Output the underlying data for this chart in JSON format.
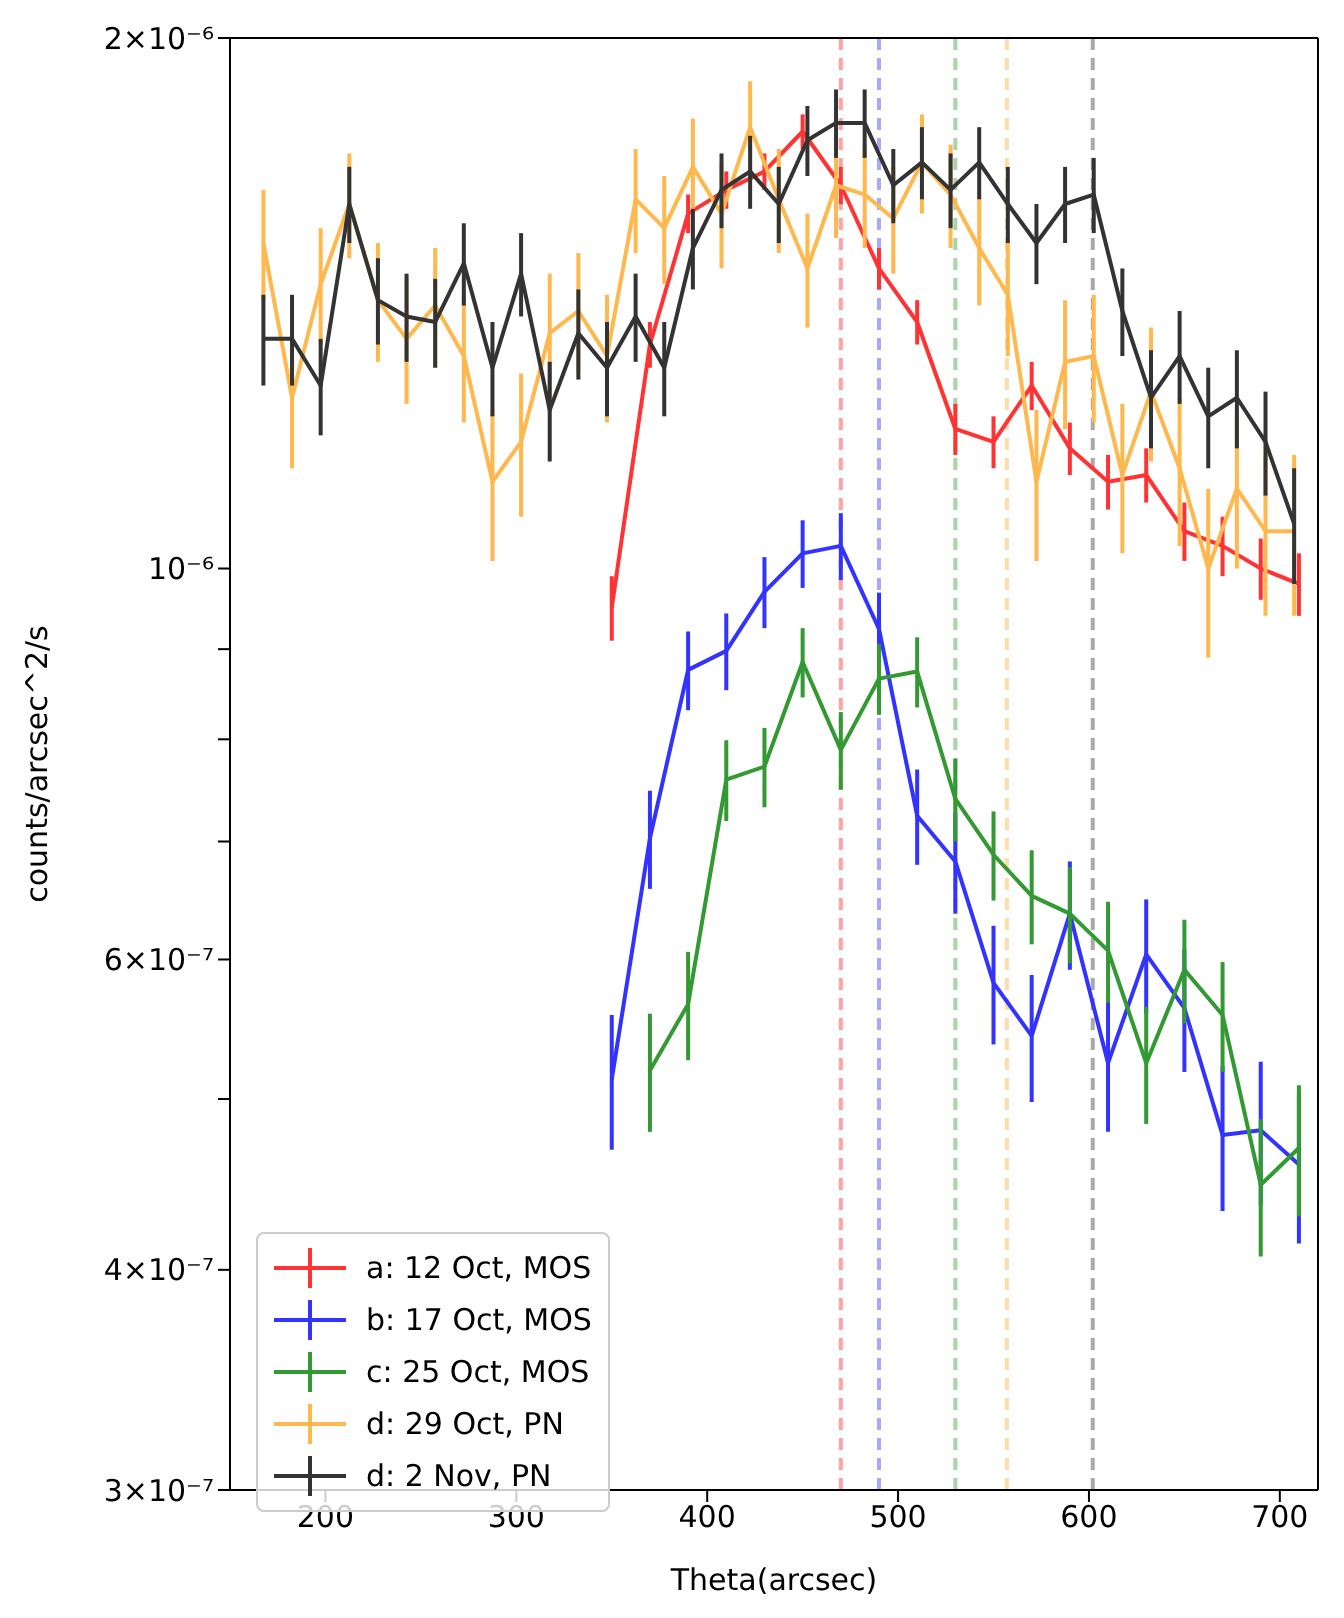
{
  "chart_data": {
    "type": "line",
    "xlabel": "Theta(arcsec)",
    "ylabel": "counts/arcsec^2/s",
    "log": "y",
    "xlim": [
      150,
      720
    ],
    "xticks": [
      200,
      300,
      400,
      500,
      600,
      700
    ],
    "ylim": [
      3e-07,
      2e-06
    ],
    "yticks": [
      {
        "value": 3e-07,
        "label": "3×10⁻⁷"
      },
      {
        "value": 4e-07,
        "label": "4×10⁻⁷"
      },
      {
        "value": 5e-07,
        "label": null
      },
      {
        "value": 6e-07,
        "label": "6×10⁻⁷"
      },
      {
        "value": 7e-07,
        "label": null
      },
      {
        "value": 8e-07,
        "label": null
      },
      {
        "value": 9e-07,
        "label": null
      },
      {
        "value": 1e-06,
        "label": "10⁻⁶"
      },
      {
        "value": 2e-06,
        "label": "2×10⁻⁶"
      }
    ],
    "legend": "bottom left",
    "marker": "none",
    "line_style": "solid",
    "ref_lines": [
      {
        "axis": "x",
        "value": 470,
        "color": "#ffa3a3",
        "line_style": "dashed"
      },
      {
        "axis": "x",
        "value": 490,
        "color": "#a8a8ff",
        "line_style": "dashed"
      },
      {
        "axis": "x",
        "value": 530,
        "color": "#a9d3a9",
        "line_style": "dashed"
      },
      {
        "axis": "x",
        "value": 557,
        "color": "#ffdca8",
        "line_style": "dashed"
      },
      {
        "axis": "x",
        "value": 602,
        "color": "#a9a9a9",
        "line_style": "dashed"
      }
    ],
    "series": [
      {
        "name": "a: 12 Oct, MOS",
        "color": "#ff3333",
        "x": [
          350,
          370,
          390,
          410,
          430,
          450,
          470,
          490,
          510,
          530,
          550,
          570,
          590,
          610,
          630,
          650,
          670,
          690,
          710
        ],
        "values": [
          9.5e-07,
          1.34e-06,
          1.59e-06,
          1.64e-06,
          1.68e-06,
          1.77e-06,
          1.65e-06,
          1.48e-06,
          1.38e-06,
          1.2e-06,
          1.18e-06,
          1.27e-06,
          1.17e-06,
          1.12e-06,
          1.13e-06,
          1.05e-06,
          1.03e-06,
          1e-06,
          9.8e-07
        ],
        "errors": [
          4e-08,
          4e-08,
          4e-08,
          4e-08,
          4e-08,
          4e-08,
          4e-08,
          4e-08,
          4e-08,
          4e-08,
          4e-08,
          4e-08,
          4e-08,
          4e-08,
          4e-08,
          4e-08,
          4e-08,
          4e-08,
          4e-08
        ]
      },
      {
        "name": "b: 17 Oct, MOS",
        "color": "#3333ff",
        "x": [
          350,
          370,
          390,
          410,
          430,
          450,
          470,
          490,
          510,
          530,
          550,
          570,
          590,
          610,
          630,
          650,
          670,
          690,
          710
        ],
        "values": [
          5.13e-07,
          7.03e-07,
          8.76e-07,
          8.98e-07,
          9.7e-07,
          1.02e-06,
          1.03e-06,
          9.24e-07,
          7.24e-07,
          6.82e-07,
          5.82e-07,
          5.43e-07,
          6.37e-07,
          5.24e-07,
          6.04e-07,
          5.63e-07,
          4.77e-07,
          4.8e-07,
          4.59e-07
        ],
        "errors": [
          4.5e-08,
          4.5e-08,
          4.5e-08,
          4.5e-08,
          4.5e-08,
          4.5e-08,
          4.5e-08,
          4.5e-08,
          4.5e-08,
          4.5e-08,
          4.5e-08,
          4.5e-08,
          4.5e-08,
          4.5e-08,
          4.5e-08,
          4.5e-08,
          4.5e-08,
          4.5e-08,
          4.5e-08
        ]
      },
      {
        "name": "c: 25 Oct, MOS",
        "color": "#339933",
        "x": [
          370,
          390,
          410,
          430,
          450,
          470,
          490,
          510,
          530,
          550,
          570,
          590,
          610,
          630,
          650,
          670,
          690,
          710
        ],
        "values": [
          5.19e-07,
          5.66e-07,
          7.59e-07,
          7.72e-07,
          8.85e-07,
          7.89e-07,
          8.66e-07,
          8.74e-07,
          7.4e-07,
          6.88e-07,
          6.52e-07,
          6.37e-07,
          6.07e-07,
          5.24e-07,
          5.92e-07,
          5.58e-07,
          4.47e-07,
          4.69e-07
        ],
        "errors": [
          4e-08,
          4e-08,
          4e-08,
          4e-08,
          4e-08,
          4e-08,
          4e-08,
          4e-08,
          4e-08,
          4e-08,
          4e-08,
          4e-08,
          4e-08,
          4e-08,
          4e-08,
          4e-08,
          4e-08,
          4e-08
        ]
      },
      {
        "name": "d: 29 Oct, PN",
        "color": "#ffb84d",
        "x": [
          167.5,
          182.5,
          197.5,
          212.5,
          227.5,
          242.5,
          257.5,
          272.5,
          287.5,
          302.5,
          317.5,
          332.5,
          347.5,
          362.5,
          377.5,
          392.5,
          407.5,
          422.5,
          437.5,
          452.5,
          467.5,
          482.5,
          497.5,
          512.5,
          527.5,
          542.5,
          557.5,
          572.5,
          587.5,
          602.5,
          617.5,
          632.5,
          647.5,
          662.5,
          677.5,
          692.5,
          707.5
        ],
        "values": [
          1.53e-06,
          1.25e-06,
          1.45e-06,
          1.61e-06,
          1.42e-06,
          1.35e-06,
          1.41e-06,
          1.32e-06,
          1.12e-06,
          1.18e-06,
          1.36e-06,
          1.4e-06,
          1.32e-06,
          1.62e-06,
          1.56e-06,
          1.69e-06,
          1.59e-06,
          1.78e-06,
          1.62e-06,
          1.48e-06,
          1.65e-06,
          1.63e-06,
          1.58e-06,
          1.7e-06,
          1.63e-06,
          1.52e-06,
          1.43e-06,
          1.12e-06,
          1.31e-06,
          1.32e-06,
          1.13e-06,
          1.26e-06,
          1.14e-06,
          1e-06,
          1.11e-06,
          1.05e-06,
          1.05e-06
        ],
        "errors": [
          1.1e-07,
          1.1e-07,
          1.1e-07,
          1.1e-07,
          1.1e-07,
          1.1e-07,
          1.1e-07,
          1.1e-07,
          1.1e-07,
          1.1e-07,
          1.1e-07,
          1.1e-07,
          1.1e-07,
          1.1e-07,
          1.1e-07,
          1.1e-07,
          1.1e-07,
          1.1e-07,
          1.1e-07,
          1.1e-07,
          1.1e-07,
          1.1e-07,
          1.1e-07,
          1.1e-07,
          1.1e-07,
          1.1e-07,
          1.1e-07,
          1.1e-07,
          1.1e-07,
          1.1e-07,
          1.1e-07,
          1.1e-07,
          1.1e-07,
          1.1e-07,
          1.1e-07,
          1.1e-07,
          1.1e-07
        ]
      },
      {
        "name": "d: 2 Nov, PN",
        "color": "#333333",
        "x": [
          167.5,
          182.5,
          197.5,
          212.5,
          227.5,
          242.5,
          257.5,
          272.5,
          287.5,
          302.5,
          317.5,
          332.5,
          347.5,
          362.5,
          377.5,
          392.5,
          407.5,
          422.5,
          437.5,
          452.5,
          467.5,
          482.5,
          497.5,
          512.5,
          527.5,
          542.5,
          557.5,
          572.5,
          587.5,
          602.5,
          617.5,
          632.5,
          647.5,
          662.5,
          677.5,
          692.5,
          707.5
        ],
        "values": [
          1.35e-06,
          1.35e-06,
          1.27e-06,
          1.61e-06,
          1.42e-06,
          1.39e-06,
          1.38e-06,
          1.49e-06,
          1.3e-06,
          1.47e-06,
          1.23e-06,
          1.36e-06,
          1.3e-06,
          1.39e-06,
          1.3e-06,
          1.52e-06,
          1.64e-06,
          1.68e-06,
          1.61e-06,
          1.75e-06,
          1.79e-06,
          1.79e-06,
          1.65e-06,
          1.7e-06,
          1.64e-06,
          1.7e-06,
          1.61e-06,
          1.53e-06,
          1.61e-06,
          1.63e-06,
          1.4e-06,
          1.25e-06,
          1.32e-06,
          1.22e-06,
          1.25e-06,
          1.18e-06,
          1.06e-06
        ],
        "errors": [
          8e-08,
          8e-08,
          8e-08,
          8e-08,
          8e-08,
          8e-08,
          8e-08,
          8e-08,
          8e-08,
          8e-08,
          8e-08,
          8e-08,
          8e-08,
          8e-08,
          8e-08,
          8e-08,
          8e-08,
          8e-08,
          8e-08,
          8e-08,
          8e-08,
          8e-08,
          8e-08,
          8e-08,
          8e-08,
          8e-08,
          8e-08,
          8e-08,
          8e-08,
          8e-08,
          8e-08,
          8e-08,
          8e-08,
          8e-08,
          8e-08,
          8e-08,
          8e-08
        ]
      }
    ]
  }
}
